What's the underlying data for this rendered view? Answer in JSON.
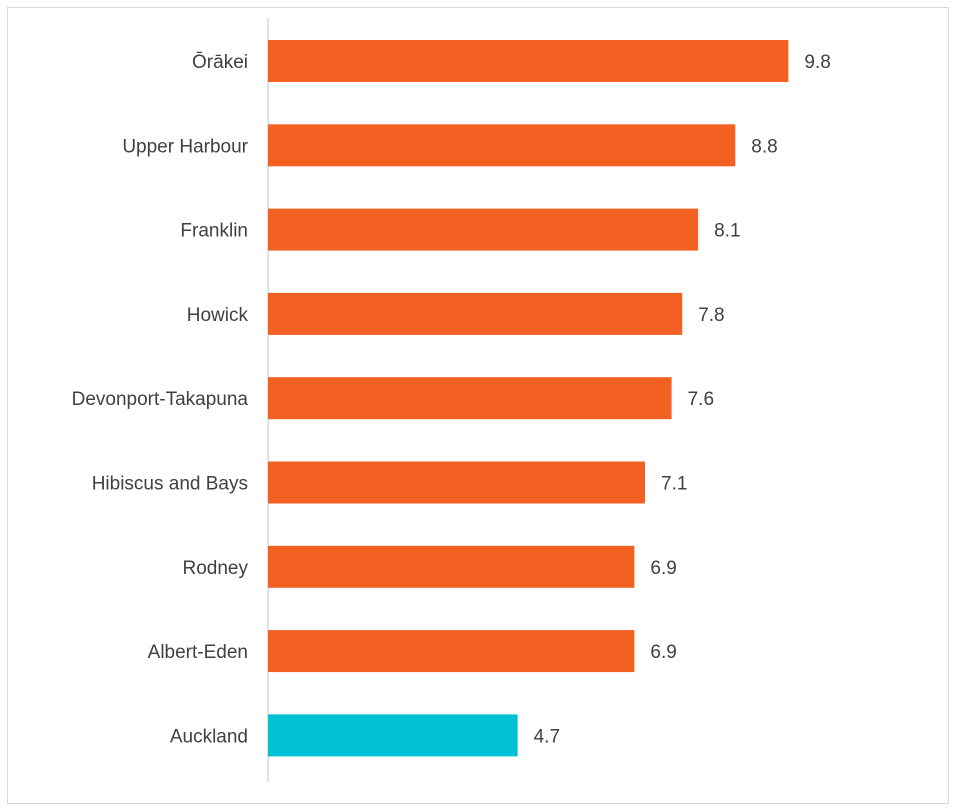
{
  "chart_data": {
    "type": "bar",
    "orientation": "horizontal",
    "title": "",
    "xlabel": "",
    "ylabel": "",
    "categories": [
      "Ōrākei",
      "Upper Harbour",
      "Franklin",
      "Howick",
      "Devonport-Takapuna",
      "Hibiscus and Bays",
      "Rodney",
      "Albert-Eden",
      "Auckland"
    ],
    "values": [
      9.8,
      8.8,
      8.1,
      7.8,
      7.6,
      7.1,
      6.9,
      6.9,
      4.7
    ],
    "value_labels": [
      "9.8",
      "8.8",
      "8.1",
      "7.8",
      "7.6",
      "7.1",
      "6.9",
      "6.9",
      "4.7"
    ],
    "xlim": [
      0,
      11.5
    ],
    "grid": false,
    "legend": "none",
    "colors": {
      "default": "#F26122",
      "highlight": "#00C0D6",
      "axis": "#d9d9d9"
    },
    "highlight_category": "Auckland"
  }
}
